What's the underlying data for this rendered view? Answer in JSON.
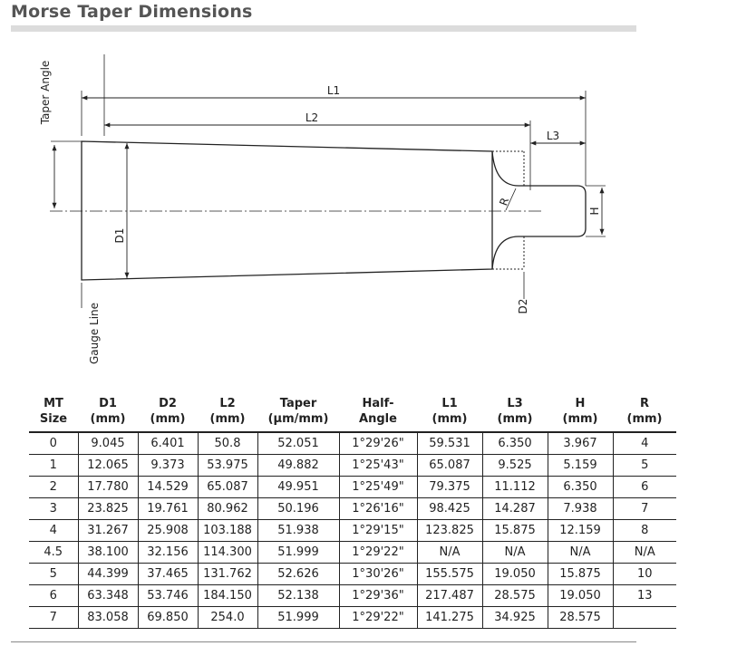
{
  "title": "Morse Taper Dimensions",
  "diagram": {
    "labels": {
      "taper_angle": "Taper Angle",
      "gauge_line": "Gauge Line",
      "l1": "L1",
      "l2": "L2",
      "l3": "L3",
      "d1": "D1",
      "d2": "D2",
      "h": "H",
      "r": "R"
    }
  },
  "table": {
    "headers": [
      [
        "MT",
        "Size"
      ],
      [
        "D1",
        "(mm)"
      ],
      [
        "D2",
        "(mm)"
      ],
      [
        "L2",
        "(mm)"
      ],
      [
        "Taper",
        "(µm/mm)"
      ],
      [
        "Half-",
        "Angle"
      ],
      [
        "L1",
        "(mm)"
      ],
      [
        "L3",
        "(mm)"
      ],
      [
        "H",
        "(mm)"
      ],
      [
        "R",
        "(mm)"
      ]
    ],
    "rows": [
      [
        "0",
        "9.045",
        "6.401",
        "50.8",
        "52.051",
        "1°29'26\"",
        "59.531",
        "6.350",
        "3.967",
        "4"
      ],
      [
        "1",
        "12.065",
        "9.373",
        "53.975",
        "49.882",
        "1°25'43\"",
        "65.087",
        "9.525",
        "5.159",
        "5"
      ],
      [
        "2",
        "17.780",
        "14.529",
        "65.087",
        "49.951",
        "1°25'49\"",
        "79.375",
        "11.112",
        "6.350",
        "6"
      ],
      [
        "3",
        "23.825",
        "19.761",
        "80.962",
        "50.196",
        "1°26'16\"",
        "98.425",
        "14.287",
        "7.938",
        "7"
      ],
      [
        "4",
        "31.267",
        "25.908",
        "103.188",
        "51.938",
        "1°29'15\"",
        "123.825",
        "15.875",
        "12.159",
        "8"
      ],
      [
        "4.5",
        "38.100",
        "32.156",
        "114.300",
        "51.999",
        "1°29'22\"",
        "N/A",
        "N/A",
        "N/A",
        "N/A"
      ],
      [
        "5",
        "44.399",
        "37.465",
        "131.762",
        "52.626",
        "1°30'26\"",
        "155.575",
        "19.050",
        "15.875",
        "10"
      ],
      [
        "6",
        "63.348",
        "53.746",
        "184.150",
        "52.138",
        "1°29'36\"",
        "217.487",
        "28.575",
        "19.050",
        "13"
      ],
      [
        "7",
        "83.058",
        "69.850",
        "254.0",
        "51.999",
        "1°29'22\"",
        "141.275",
        "34.925",
        "28.575",
        ""
      ]
    ]
  }
}
